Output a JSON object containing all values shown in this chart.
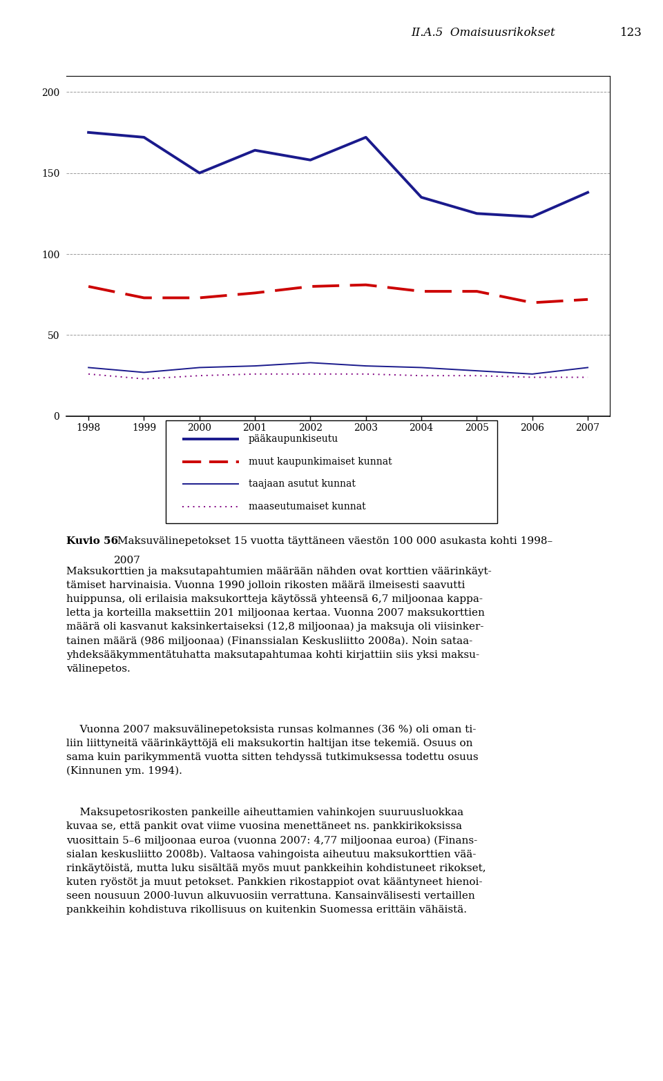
{
  "years": [
    1998,
    1999,
    2000,
    2001,
    2002,
    2003,
    2004,
    2005,
    2006,
    2007
  ],
  "paakaupunkiseutu": [
    175,
    172,
    150,
    164,
    158,
    172,
    135,
    125,
    123,
    138
  ],
  "muut_kaupunkimaiset": [
    80,
    73,
    73,
    76,
    80,
    81,
    77,
    77,
    70,
    72
  ],
  "taajaan_asutut": [
    30,
    27,
    30,
    31,
    33,
    31,
    30,
    28,
    26,
    30
  ],
  "maaseutumaiset": [
    26,
    23,
    25,
    26,
    26,
    26,
    25,
    25,
    24,
    24
  ],
  "header_italic": "II.A.5  Omaisuusrikokset",
  "header_number": "123",
  "caption_bold": "Kuvio 56",
  "caption_rest": " Maksuvälinepetokset 15 vuotta täyttäneen väestön 100 000 asukasta kohti 1998–",
  "caption_line2": "2007",
  "legend_labels": [
    "pääkaupunkiseutu",
    "muut kaupunkimaiset kunnat",
    "taajaan asutut kunnat",
    "maaseutumaiset kunnat"
  ],
  "ylim": [
    0,
    210
  ],
  "yticks": [
    0,
    50,
    100,
    150,
    200
  ],
  "colors": {
    "paakaupunkiseutu": "#1a1a8c",
    "muut_kaupunkimaiset": "#cc0000",
    "taajaan_asutut": "#1a1a8c",
    "maaseutumaiset": "#800080"
  },
  "para0": "Maksukorttien ja maksutapahtumien määrään nähden ovat korttien väärinkäyt-tämiset harvinaisia. Vuonna 1990 jolloin rikosten määrä ilmeisesti saavutti huippunsa, oli erilaisia maksukortteja käytössä yhteensä 6,7 miljoonaa kappa-letta ja korteilla maksettiin 201 miljoonaa kertaa. Vuonna 2007 maksukorttien määrä oli kasvanut kaksinkertaiseksi (12,8 miljoonaa) ja maksuja oli viisin-kertainen määrä (986 miljoonaa) (Finanssialan Keskusliitto 2008a). Noin sataa-yhdeksääkymmentätuhatta maksutapahtumaa kohti kirjattiin siis yksi maksu-välinepetos.",
  "para1": "Vuonna 2007 maksuvälinepetoksista runsas kolmannes (36 %) oli oman ti-liin liittyneitä väärinkäyttöjä eli maksukortin haltijan itse tekemiä. Osuus on sama kuin parikymmentä vuotta sitten tehdyssä tutkimuksessa todettu osuus (Kinnunen ym. 1994).",
  "para2": "Maksupetosrikosten pankeille aiheuttamien vahinkojen suuruusluokkaa kuvaa se, että pankit ovat viime vuosina menettäneet ns. pankkirikoksissa vuosittain 5–6 miljoonaa euroa (vuonna 2007: 4,77 miljoonaa euroa) (Finanssialan keskusliitto 2008b). Valtaosa vahingoista aiheutuu maksukorttien väärinkäytöistä, mutta luku sisältää myös muut pankkeihin kohdistuneet rikokset, kuten ryöstöt ja muut petokset. Pankkien rikostappiot ovat kääntyneet hienoiseen nousuun 2000-luvun alkuvuosiin verrattuna. Kansainvälisesti vertaillen pankkeihin kohdistuva rikollisuus on kuitenkin Suomessa erittäin vähäistä."
}
